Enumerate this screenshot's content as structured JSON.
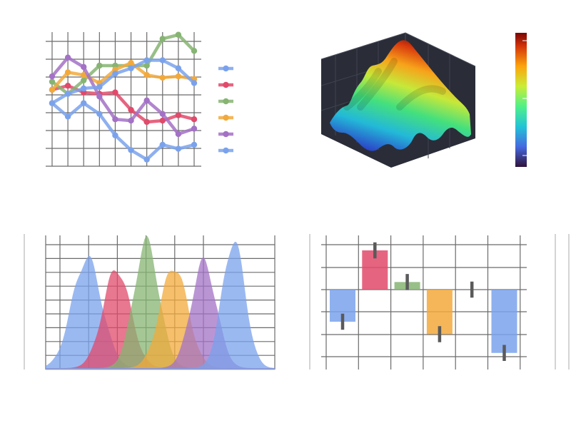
{
  "charts": [
    {
      "type": "line",
      "x": [
        0,
        1,
        2,
        3,
        4,
        5,
        6,
        7,
        8,
        9
      ],
      "ylim": [
        0,
        1
      ],
      "grid": true,
      "legend": "right",
      "series": [
        {
          "color": "#7aa2ec",
          "values": [
            0.47,
            0.37,
            0.47,
            0.39,
            0.23,
            0.12,
            0.05,
            0.16,
            0.13,
            0.16
          ]
        },
        {
          "color": "#e04a6b",
          "values": [
            0.57,
            0.6,
            0.55,
            0.54,
            0.55,
            0.42,
            0.33,
            0.34,
            0.38,
            0.35
          ]
        },
        {
          "color": "#86b472",
          "values": [
            0.63,
            0.54,
            0.64,
            0.75,
            0.75,
            0.75,
            0.75,
            0.95,
            0.98,
            0.86
          ]
        },
        {
          "color": "#f2a93b",
          "values": [
            0.57,
            0.7,
            0.68,
            0.62,
            0.72,
            0.77,
            0.68,
            0.66,
            0.67,
            0.65
          ]
        },
        {
          "color": "#a371c6",
          "values": [
            0.67,
            0.81,
            0.74,
            0.52,
            0.35,
            0.34,
            0.49,
            0.39,
            0.24,
            0.28
          ]
        },
        {
          "color": "#7aa2ec",
          "values": [
            0.47,
            0.54,
            0.58,
            0.59,
            0.69,
            0.73,
            0.79,
            0.79,
            0.73,
            0.62
          ]
        }
      ]
    },
    {
      "type": "surface3d",
      "colormap": "turbo",
      "colorbar": true,
      "background": "#2a2d38"
    },
    {
      "type": "area",
      "grid": true,
      "ylim": [
        0,
        1
      ],
      "series": [
        {
          "color": "#7aa2ec",
          "mean": 0.18,
          "sd": 0.065,
          "peak": 0.82
        },
        {
          "color": "#e04a6b",
          "mean": 0.31,
          "sd": 0.06,
          "peak": 0.74
        },
        {
          "color": "#86b472",
          "mean": 0.44,
          "sd": 0.055,
          "peak": 0.94
        },
        {
          "color": "#f2a93b",
          "mean": 0.56,
          "sd": 0.06,
          "peak": 0.76
        },
        {
          "color": "#a371c6",
          "mean": 0.69,
          "sd": 0.055,
          "peak": 0.79
        },
        {
          "color": "#7aa2ec",
          "mean": 0.82,
          "sd": 0.05,
          "peak": 0.95
        }
      ]
    },
    {
      "type": "bar",
      "grid": true,
      "ylim": [
        -1.4,
        1.2
      ],
      "bars": [
        {
          "color": "#7aa2ec",
          "value": -0.72,
          "err": 0.18
        },
        {
          "color": "#e04a6b",
          "value": 0.88,
          "err": 0.18
        },
        {
          "color": "#86b472",
          "value": 0.17,
          "err": 0.18
        },
        {
          "color": "#f2a93b",
          "value": -1.0,
          "err": 0.18
        },
        {
          "color": "#7aa2ec",
          "value": 0.0,
          "err": 0.18
        },
        {
          "color": "#7aa2ec",
          "value": -1.42,
          "err": 0.18
        }
      ]
    }
  ]
}
